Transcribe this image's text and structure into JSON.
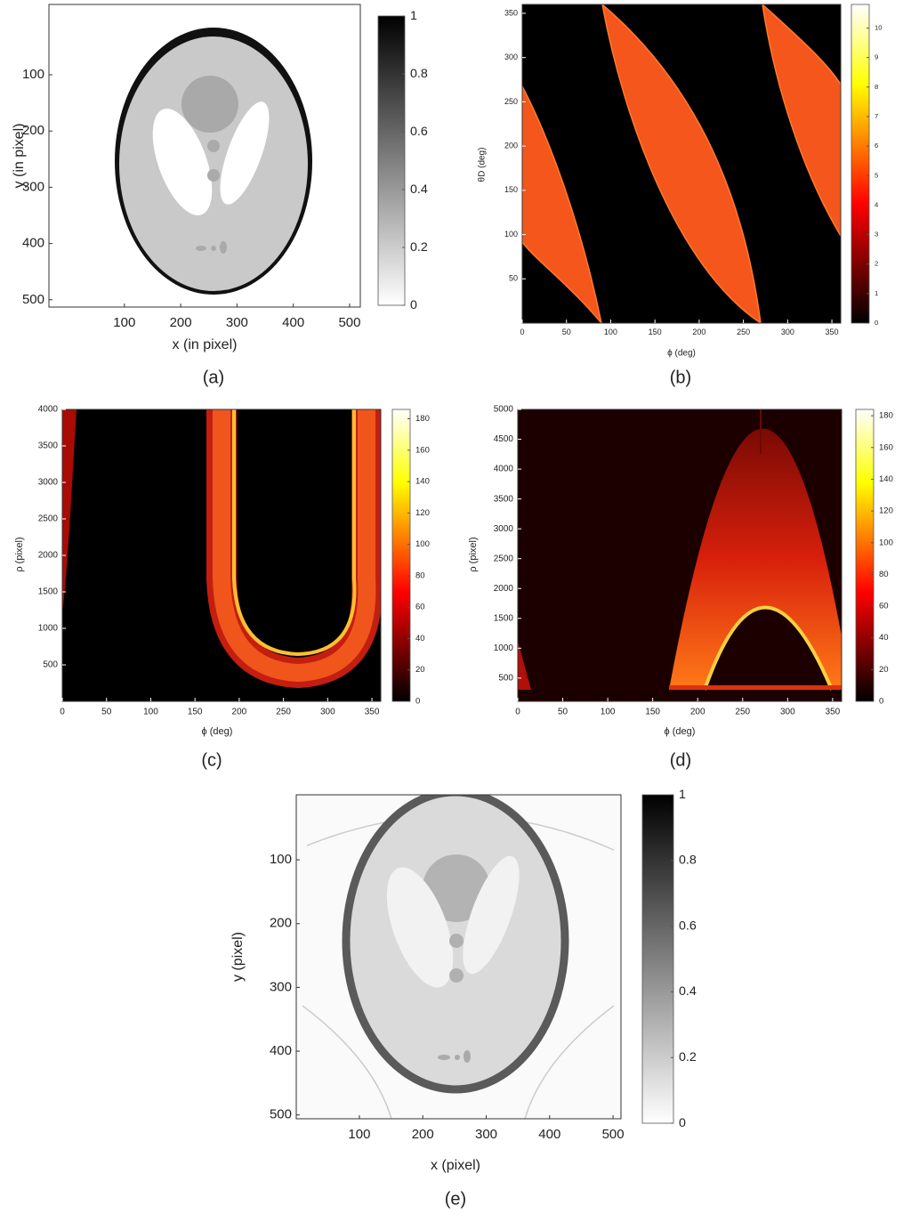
{
  "chart_data": [
    {
      "type": "heatmap",
      "caption": "(a)",
      "xlabel": "x (in pixel)",
      "ylabel": "y (in pixel)",
      "xlim": [
        -34,
        519
      ],
      "ylim": [
        -25,
        513
      ],
      "yreverse": true,
      "xticks": [
        100,
        200,
        300,
        400,
        500
      ],
      "yticks": [
        100,
        200,
        300,
        400,
        500
      ],
      "colormap": "gray_r",
      "clim": [
        0,
        1
      ],
      "cticks": [
        0,
        0.2,
        0.4,
        0.6,
        0.8,
        1
      ]
    },
    {
      "type": "heatmap",
      "caption": "(b)",
      "xlabel": "ϕ (deg)",
      "ylabel": "θD (deg)",
      "xlim": [
        0,
        360
      ],
      "ylim": [
        0,
        360
      ],
      "yreverse": false,
      "xticks": [
        0,
        50,
        100,
        150,
        200,
        250,
        300,
        350
      ],
      "yticks": [
        50,
        100,
        150,
        200,
        250,
        300,
        350
      ],
      "colormap": "hot",
      "clim": [
        0,
        10.8
      ],
      "cticks": [
        0,
        1,
        2,
        3,
        4,
        5,
        6,
        7,
        8,
        9,
        10
      ]
    },
    {
      "type": "heatmap",
      "caption": "(c)",
      "xlabel": "ϕ (deg)",
      "ylabel": "ρ (pixel)",
      "xlim": [
        0,
        360
      ],
      "ylim": [
        0,
        4000
      ],
      "yreverse": false,
      "xticks": [
        0,
        50,
        100,
        150,
        200,
        250,
        300,
        350
      ],
      "yticks": [
        500,
        1000,
        1500,
        2000,
        2500,
        3000,
        3500,
        4000
      ],
      "colormap": "hot",
      "clim": [
        0,
        186
      ],
      "cticks": [
        0,
        20,
        40,
        60,
        80,
        100,
        120,
        140,
        160,
        180
      ]
    },
    {
      "type": "heatmap",
      "caption": "(d)",
      "xlabel": "ϕ (deg)",
      "ylabel": "ρ (pixel)",
      "xlim": [
        0,
        360
      ],
      "ylim": [
        110,
        5000
      ],
      "yreverse": false,
      "xticks": [
        0,
        50,
        100,
        150,
        200,
        250,
        300,
        350
      ],
      "yticks": [
        500,
        1000,
        1500,
        2000,
        2500,
        3000,
        3500,
        4000,
        4500,
        5000
      ],
      "colormap": "hot",
      "clim": [
        0,
        184
      ],
      "cticks": [
        0,
        20,
        40,
        60,
        80,
        100,
        120,
        140,
        160,
        180
      ]
    },
    {
      "type": "heatmap",
      "caption": "(e)",
      "xlabel": "x (pixel)",
      "ylabel": "y (pixel)",
      "xlim": [
        0.5,
        512.5
      ],
      "ylim": [
        -2,
        506
      ],
      "yreverse": true,
      "xticks": [
        100,
        200,
        300,
        400,
        500
      ],
      "yticks": [
        100,
        200,
        300,
        400,
        500
      ],
      "colormap": "gray_r",
      "clim": [
        0,
        1
      ],
      "cticks": [
        0,
        0.2,
        0.4,
        0.6,
        0.8,
        1
      ]
    }
  ]
}
